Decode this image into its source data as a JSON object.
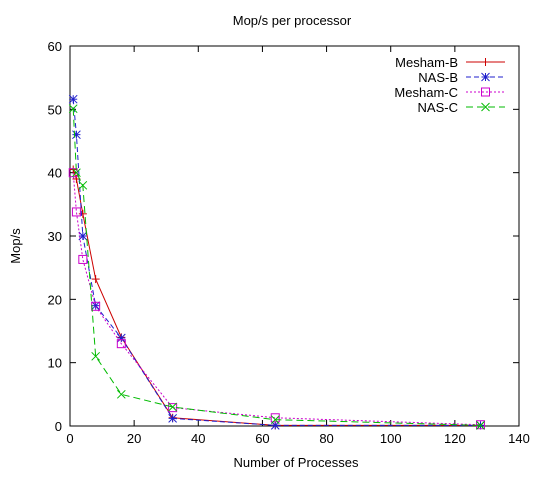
{
  "chart_data": {
    "type": "line",
    "title": "Mop/s per processor",
    "xlabel": "Number of Processes",
    "ylabel": "Mop/s",
    "xlim": [
      0,
      140
    ],
    "ylim": [
      0,
      60
    ],
    "xticks": [
      0,
      20,
      40,
      60,
      80,
      100,
      120,
      140
    ],
    "yticks": [
      0,
      10,
      20,
      30,
      40,
      50,
      60
    ],
    "grid": false,
    "legend_position": "top-right",
    "series": [
      {
        "name": "Mesham-B",
        "color": "#cc0000",
        "dash": "solid",
        "marker": "plus",
        "x": [
          1,
          2,
          4,
          8,
          16,
          32,
          64,
          128
        ],
        "y": [
          40.5,
          39.0,
          33.5,
          23.2,
          14.0,
          1.3,
          0.1,
          0.1
        ]
      },
      {
        "name": "NAS-B",
        "color": "#1f1fcc",
        "dash": "dashed",
        "marker": "star",
        "x": [
          1,
          2,
          4,
          8,
          16,
          32,
          64,
          128
        ],
        "y": [
          51.6,
          46.0,
          30.0,
          19.0,
          13.9,
          1.2,
          0.1,
          0.1
        ]
      },
      {
        "name": "Mesham-C",
        "color": "#cc00cc",
        "dash": "dotted",
        "marker": "square",
        "x": [
          1,
          2,
          4,
          8,
          16,
          32,
          64,
          128
        ],
        "y": [
          40.0,
          33.8,
          26.3,
          18.9,
          13.0,
          2.9,
          1.3,
          0.2
        ]
      },
      {
        "name": "NAS-C",
        "color": "#00bb00",
        "dash": "longdash",
        "marker": "cross",
        "x": [
          1,
          2,
          4,
          8,
          16,
          32,
          64,
          128
        ],
        "y": [
          50.1,
          40.0,
          38.0,
          11.0,
          5.0,
          3.0,
          1.0,
          0.1
        ]
      }
    ]
  }
}
